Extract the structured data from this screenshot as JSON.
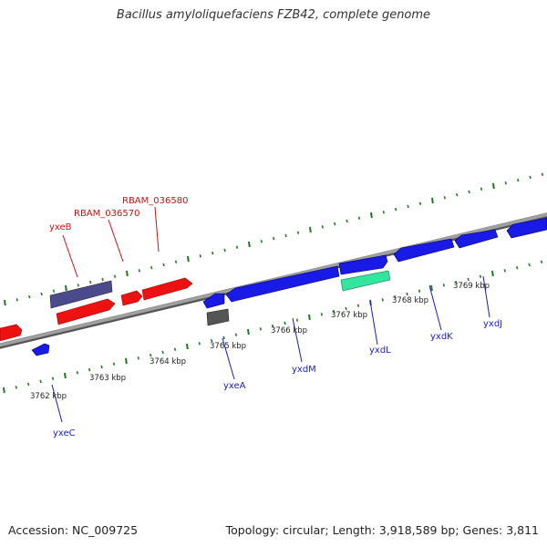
{
  "title": "Bacillus amyloliquefaciens FZB42, complete genome",
  "footer": {
    "accession": "Accession: NC_009725",
    "summary": "Topology: circular; Length: 3,918,589 bp; Genes: 3,811"
  },
  "colors": {
    "backbone": "#8a8a8a",
    "tick": "#1e7a1e",
    "gene_blue": "#1a1ae6",
    "gene_red": "#ee1111",
    "gene_purple": "#4a4a8c",
    "gene_gray": "#555555",
    "gene_teal": "#33e6a0",
    "label_blue": "#1a1acc",
    "label_red": "#cc1111"
  },
  "scale_labels": [
    "3762 kbp",
    "3763 kbp",
    "3764 kbp",
    "3765 kbp",
    "3766 kbp",
    "3767 kbp",
    "3768 kbp",
    "3769 kbp"
  ],
  "gene_labels": [
    {
      "text": "yxeB",
      "color": "red"
    },
    {
      "text": "RBAM_036570",
      "color": "red"
    },
    {
      "text": "RBAM_036580",
      "color": "red"
    },
    {
      "text": "yxeC",
      "color": "blue"
    },
    {
      "text": "yxeA",
      "color": "blue"
    },
    {
      "text": "yxdM",
      "color": "blue"
    },
    {
      "text": "yxdL",
      "color": "blue"
    },
    {
      "text": "yxdK",
      "color": "blue"
    },
    {
      "text": "yxdJ",
      "color": "blue"
    }
  ]
}
